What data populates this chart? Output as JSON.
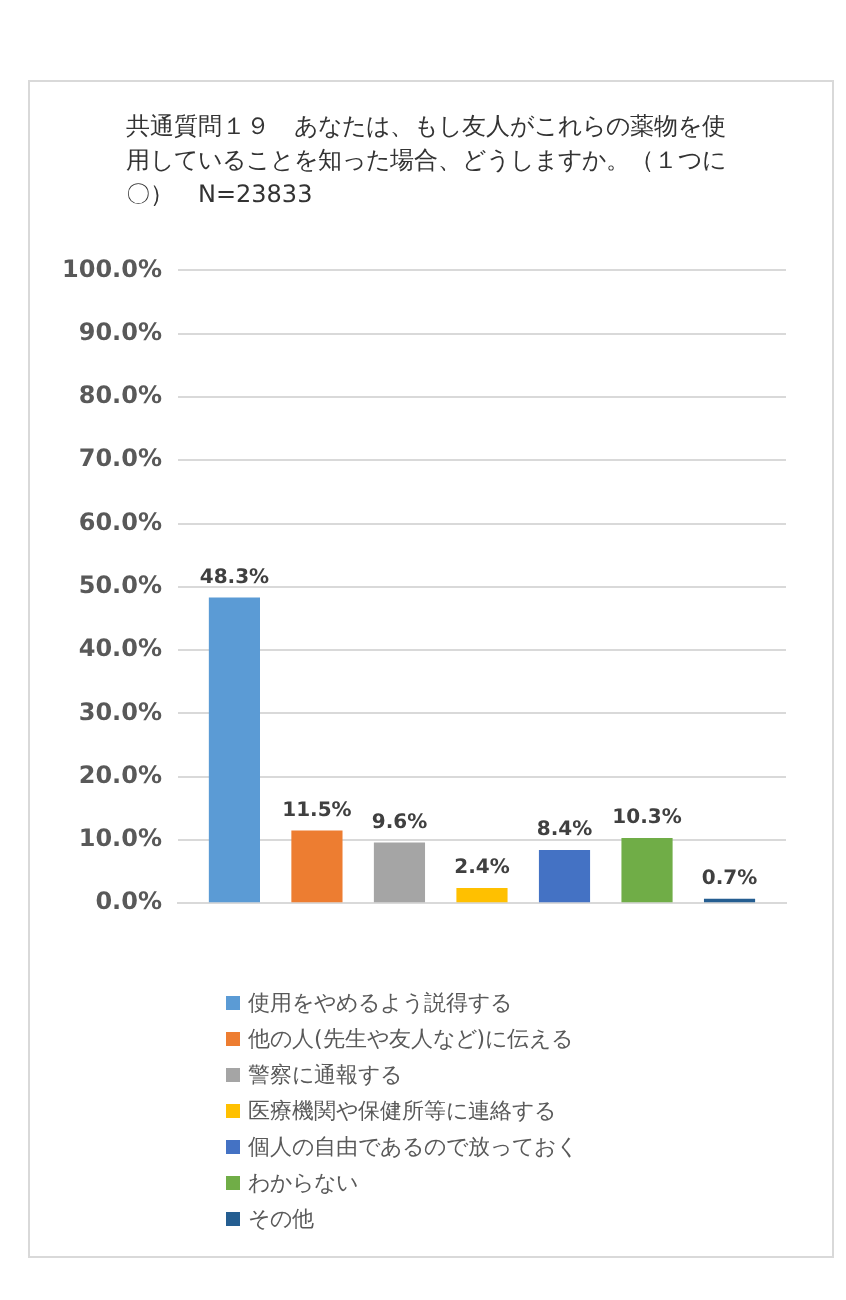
{
  "chart_data": {
    "type": "bar",
    "title": "共通質問１９　あなたは、もし友人がこれらの薬物を使用していることを知った場合、どうしますか。（１つに〇）　N=23833",
    "categories": [
      null
    ],
    "series": [
      {
        "name": "使用をやめるよう説得する",
        "color": "#5b9bd5",
        "values": [
          48.3
        ],
        "value_labels": [
          "48.3%"
        ]
      },
      {
        "name": "他の人(先生や友人など)に伝える",
        "color": "#ed7d31",
        "values": [
          11.5
        ],
        "value_labels": [
          "11.5%"
        ]
      },
      {
        "name": "警察に通報する",
        "color": "#a5a5a5",
        "values": [
          9.6
        ],
        "value_labels": [
          "9.6%"
        ]
      },
      {
        "name": "医療機関や保健所等に連絡する",
        "color": "#ffc000",
        "values": [
          2.4
        ],
        "value_labels": [
          "2.4%"
        ]
      },
      {
        "name": "個人の自由であるので放っておく",
        "color": "#4472c4",
        "values": [
          8.4
        ],
        "value_labels": [
          "8.4%"
        ]
      },
      {
        "name": "わからない",
        "color": "#70ad47",
        "values": [
          10.3
        ],
        "value_labels": [
          "10.3%"
        ]
      },
      {
        "name": "その他",
        "color": "#255e91",
        "values": [
          0.7
        ],
        "value_labels": [
          "0.7%"
        ]
      }
    ],
    "ylim": [
      0,
      100
    ],
    "yticks": [
      {
        "value": 0,
        "label": "0.0%"
      },
      {
        "value": 10,
        "label": "10.0%"
      },
      {
        "value": 20,
        "label": "20.0%"
      },
      {
        "value": 30,
        "label": "30.0%"
      },
      {
        "value": 40,
        "label": "40.0%"
      },
      {
        "value": 50,
        "label": "50.0%"
      },
      {
        "value": 60,
        "label": "60.0%"
      },
      {
        "value": 70,
        "label": "70.0%"
      },
      {
        "value": 80,
        "label": "80.0%"
      },
      {
        "value": 90,
        "label": "90.0%"
      },
      {
        "value": 100,
        "label": "100.0%"
      }
    ],
    "grid": "y",
    "legend": "bottom"
  }
}
